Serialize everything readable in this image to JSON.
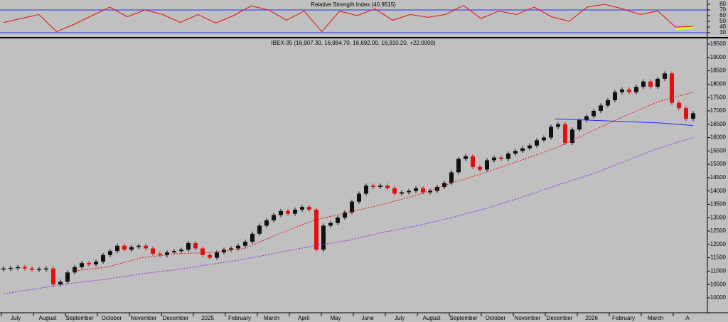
{
  "chart_data": [
    {
      "type": "line",
      "title": "Relative Strength Index (40.9515)",
      "ylim": [
        22.5,
        87.5
      ],
      "yticks": [
        30,
        40,
        50,
        60,
        70,
        80
      ],
      "reference_lines": [
        70,
        30
      ],
      "reference_color": "#2a2aff",
      "series": [
        {
          "color": "#e01010",
          "values": [
            48,
            55,
            62,
            32,
            45,
            60,
            75,
            58,
            70,
            62,
            48,
            62,
            47,
            60,
            77,
            70,
            52,
            68,
            32,
            68,
            60,
            72,
            52,
            62,
            57,
            62,
            78,
            55,
            68,
            62,
            75,
            58,
            50,
            75,
            80,
            72,
            62,
            68,
            40,
            41
          ]
        },
        {
          "color": "#ffff00",
          "values": [
            null,
            null,
            null,
            null,
            null,
            null,
            null,
            null,
            null,
            null,
            null,
            null,
            null,
            null,
            null,
            null,
            null,
            null,
            null,
            null,
            null,
            null,
            null,
            null,
            null,
            null,
            null,
            null,
            null,
            null,
            null,
            null,
            null,
            null,
            null,
            null,
            null,
            null,
            36,
            39
          ]
        }
      ]
    },
    {
      "type": "candlestick",
      "title": "IBEX-35 (16,907.30, 16,984.70, 16,692.00, 16,910.20, +22.0000)",
      "ylim": [
        9440,
        19660
      ],
      "yticks": [
        10000,
        10500,
        11000,
        11500,
        12000,
        12500,
        13000,
        13500,
        14000,
        14500,
        15000,
        15500,
        16000,
        16500,
        17000,
        17500,
        18000,
        18500,
        19000,
        19500
      ],
      "x_labels": [
        "July",
        "August",
        "September",
        "October",
        "November",
        "December",
        "2025",
        "February",
        "March",
        "April",
        "May",
        "June",
        "July",
        "August",
        "September",
        "October",
        "November",
        "December",
        "2026",
        "February",
        "March",
        "A"
      ],
      "up_color": "#111111",
      "down_color": "#e01010",
      "values": [
        11100,
        11120,
        11150,
        11100,
        11050,
        11080,
        11100,
        10500,
        10600,
        10950,
        11150,
        11300,
        11250,
        11350,
        11600,
        11750,
        11950,
        11800,
        11900,
        11950,
        11850,
        11650,
        11600,
        11700,
        11750,
        11800,
        12050,
        11850,
        11600,
        11500,
        11700,
        11800,
        11850,
        11950,
        12100,
        12400,
        12700,
        12900,
        13100,
        13250,
        13150,
        13300,
        13400,
        13300,
        11800,
        12700,
        12800,
        13000,
        13200,
        13600,
        13900,
        14200,
        14150,
        14200,
        14100,
        13900,
        13950,
        14000,
        14100,
        13950,
        14000,
        14150,
        14300,
        14700,
        15200,
        15300,
        14900,
        14800,
        15150,
        15250,
        15200,
        15400,
        15500,
        15600,
        15700,
        15900,
        16000,
        16400,
        16500,
        15800,
        16300,
        16650,
        16800,
        17000,
        17200,
        17400,
        17700,
        17800,
        17700,
        17900,
        18100,
        17900,
        18200,
        18400,
        17300,
        17100,
        16700,
        16910
      ],
      "series": [
        {
          "color": "#e01010",
          "values": [
            null,
            null,
            11000,
            11150,
            11500,
            11650,
            11700,
            11850,
            12400,
            12900,
            13200,
            13500,
            13850,
            14300,
            14700,
            15150,
            15600,
            16200,
            16800,
            17350,
            17700
          ]
        },
        {
          "color": "#8a2be2",
          "values": [
            10150,
            10350,
            10550,
            10700,
            10900,
            11050,
            11250,
            11450,
            11700,
            11950,
            12150,
            12450,
            12700,
            13000,
            13350,
            13750,
            14200,
            14600,
            15100,
            15600,
            16000
          ]
        },
        {
          "color": "#2a2aff",
          "values": [
            null,
            null,
            null,
            null,
            null,
            null,
            null,
            null,
            null,
            null,
            null,
            null,
            null,
            null,
            null,
            null,
            16700,
            16650,
            16600,
            16550,
            16450
          ]
        }
      ]
    }
  ]
}
